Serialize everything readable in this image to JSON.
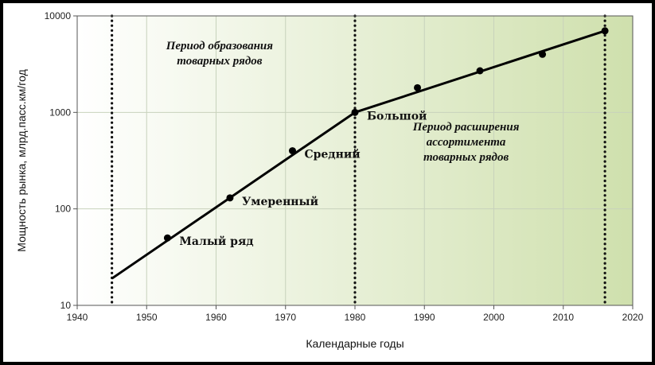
{
  "chart_data": {
    "type": "line",
    "xlabel": "Календарные годы",
    "ylabel": "Мощность рынка, млрд.пасс.км/год",
    "xlim": [
      1940,
      2020
    ],
    "ylim": [
      10,
      10000
    ],
    "yscale": "log",
    "x_ticks": [
      1940,
      1950,
      1960,
      1970,
      1980,
      1990,
      2000,
      2010,
      2020
    ],
    "y_ticks": [
      10,
      100,
      1000,
      10000
    ],
    "grid": true,
    "line": {
      "x": [
        1945,
        1980,
        2016
      ],
      "y": [
        19,
        1000,
        7000
      ]
    },
    "points": [
      {
        "x": 1953,
        "y": 50
      },
      {
        "x": 1962,
        "y": 130
      },
      {
        "x": 1971,
        "y": 400
      },
      {
        "x": 1980,
        "y": 1000
      },
      {
        "x": 1989,
        "y": 1800
      },
      {
        "x": 1998,
        "y": 2700
      },
      {
        "x": 2007,
        "y": 4000
      },
      {
        "x": 2016,
        "y": 7000
      }
    ],
    "stage_labels": [
      {
        "text": "Малый ряд",
        "x": 1953,
        "y": 50
      },
      {
        "text": "Умеренный",
        "x": 1962,
        "y": 130
      },
      {
        "text": "Средний",
        "x": 1971,
        "y": 400
      },
      {
        "text": "Большой",
        "x": 1980,
        "y": 1000
      }
    ],
    "vertical_lines": [
      1945,
      1980,
      2016
    ],
    "periods": [
      {
        "lines": [
          "Период образования",
          "товарных рядов"
        ],
        "x": 1960.5,
        "y": 4500
      },
      {
        "lines": [
          "Период расширения",
          "ассортимента",
          "товарных рядов"
        ],
        "x": 1996,
        "y": 650
      }
    ],
    "colors": {
      "background_start": "#ffffff",
      "background_end": "#cfe0ad",
      "line": "#000000",
      "grid": "#c8d2bc"
    }
  }
}
